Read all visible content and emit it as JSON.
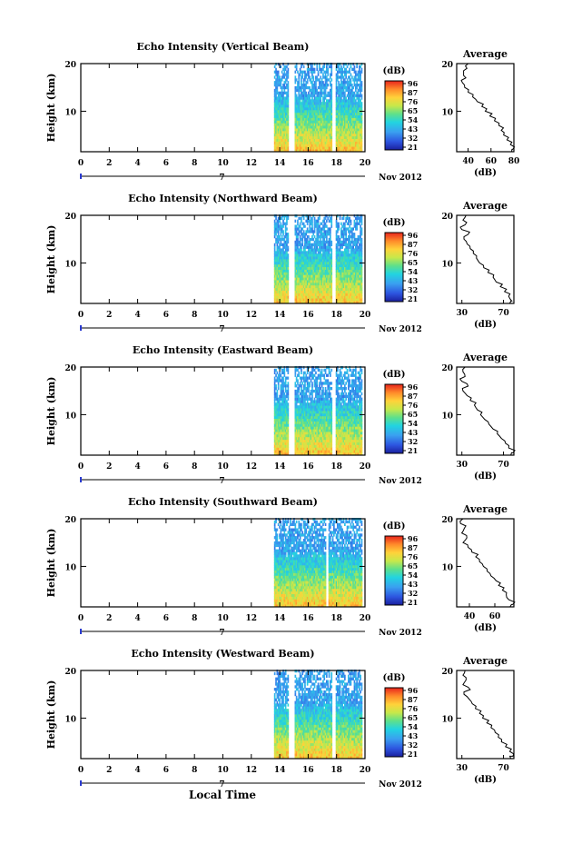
{
  "figure": {
    "xlabel": "Local Time",
    "date_label": "Nov 2012",
    "day_label": "7"
  },
  "chart_data": [
    {
      "type": "heatmap",
      "title": "Echo Intensity (Vertical Beam)",
      "xlabel": "",
      "ylabel": "Height (km)",
      "xlim": [
        0,
        20
      ],
      "ylim": [
        1.5,
        20
      ],
      "x_ticks": [
        "0",
        "2",
        "4",
        "6",
        "8",
        "10",
        "12",
        "14",
        "16",
        "18",
        "20"
      ],
      "y_ticks": [
        "10",
        "20"
      ],
      "data_start_hour": 13.6,
      "data_end_hour": 19.8,
      "gaps_hours": [
        [
          14.6,
          15.0
        ],
        [
          17.6,
          17.9
        ]
      ],
      "colorbar": {
        "label": "(dB)",
        "ticks": [
          "96",
          "87",
          "76",
          "65",
          "54",
          "43",
          "32",
          "21"
        ]
      },
      "average": {
        "title": "Average",
        "xlabel": "(dB)",
        "x_ticks": [
          "40",
          "60",
          "80"
        ],
        "y_ticks": [
          "10",
          "20"
        ],
        "xlim": [
          30,
          80
        ],
        "profile": [
          [
            78,
            1.5
          ],
          [
            79,
            2
          ],
          [
            77,
            3
          ],
          [
            74,
            4
          ],
          [
            71,
            5
          ],
          [
            69,
            6
          ],
          [
            67,
            7
          ],
          [
            63,
            8
          ],
          [
            59,
            9
          ],
          [
            55,
            10
          ],
          [
            52,
            11
          ],
          [
            48,
            12
          ],
          [
            44,
            13
          ],
          [
            40,
            14
          ],
          [
            37,
            15
          ],
          [
            35,
            16
          ],
          [
            38,
            17
          ],
          [
            36,
            18
          ],
          [
            39,
            19
          ],
          [
            40,
            20
          ]
        ]
      }
    },
    {
      "type": "heatmap",
      "title": "Echo Intensity (Northward Beam)",
      "xlabel": "",
      "ylabel": "Height (km)",
      "xlim": [
        0,
        20
      ],
      "ylim": [
        1.5,
        20
      ],
      "x_ticks": [
        "0",
        "2",
        "4",
        "6",
        "8",
        "10",
        "12",
        "14",
        "16",
        "18",
        "20"
      ],
      "y_ticks": [
        "10",
        "20"
      ],
      "data_start_hour": 13.6,
      "data_end_hour": 19.8,
      "gaps_hours": [
        [
          14.6,
          15.0
        ],
        [
          17.6,
          17.9
        ]
      ],
      "colorbar": {
        "label": "(dB)",
        "ticks": [
          "96",
          "87",
          "76",
          "65",
          "54",
          "43",
          "32",
          "21"
        ]
      },
      "average": {
        "title": "Average",
        "xlabel": "(dB)",
        "x_ticks": [
          "30",
          "70"
        ],
        "y_ticks": [
          "10",
          "20"
        ],
        "xlim": [
          25,
          80
        ],
        "profile": [
          [
            76,
            1.5
          ],
          [
            78,
            2
          ],
          [
            75,
            3
          ],
          [
            71,
            4
          ],
          [
            67,
            5
          ],
          [
            63,
            6
          ],
          [
            60,
            7
          ],
          [
            55,
            8
          ],
          [
            51,
            9
          ],
          [
            47,
            10
          ],
          [
            44,
            11
          ],
          [
            41,
            12
          ],
          [
            38,
            13
          ],
          [
            35,
            14
          ],
          [
            32,
            15
          ],
          [
            36,
            16
          ],
          [
            30,
            17
          ],
          [
            33,
            18
          ],
          [
            31,
            19
          ],
          [
            34,
            20
          ]
        ]
      }
    },
    {
      "type": "heatmap",
      "title": "Echo Intensity (Eastward Beam)",
      "xlabel": "",
      "ylabel": "Height (km)",
      "xlim": [
        0,
        20
      ],
      "ylim": [
        1.5,
        20
      ],
      "x_ticks": [
        "0",
        "2",
        "4",
        "6",
        "8",
        "10",
        "12",
        "14",
        "16",
        "18",
        "20"
      ],
      "y_ticks": [
        "10",
        "20"
      ],
      "data_start_hour": 13.6,
      "data_end_hour": 19.8,
      "gaps_hours": [
        [
          14.6,
          15.0
        ],
        [
          17.6,
          17.9
        ]
      ],
      "colorbar": {
        "label": "(dB)",
        "ticks": [
          "96",
          "87",
          "76",
          "65",
          "54",
          "43",
          "32",
          "21"
        ]
      },
      "average": {
        "title": "Average",
        "xlabel": "(dB)",
        "x_ticks": [
          "30",
          "70"
        ],
        "y_ticks": [
          "10",
          "20"
        ],
        "xlim": [
          25,
          80
        ],
        "profile": [
          [
            77,
            1.5
          ],
          [
            79,
            2
          ],
          [
            75,
            3
          ],
          [
            72,
            4
          ],
          [
            68,
            5
          ],
          [
            64,
            6
          ],
          [
            60,
            7
          ],
          [
            56,
            8
          ],
          [
            52,
            9
          ],
          [
            48,
            10
          ],
          [
            45,
            11
          ],
          [
            42,
            12
          ],
          [
            38,
            13
          ],
          [
            35,
            14
          ],
          [
            31,
            15
          ],
          [
            36,
            16
          ],
          [
            30,
            17
          ],
          [
            33,
            18
          ],
          [
            31,
            19
          ],
          [
            33,
            20
          ]
        ]
      }
    },
    {
      "type": "heatmap",
      "title": "Echo Intensity (Southward Beam)",
      "xlabel": "",
      "ylabel": "Height (km)",
      "xlim": [
        0,
        20
      ],
      "ylim": [
        1.5,
        20
      ],
      "x_ticks": [
        "0",
        "2",
        "4",
        "6",
        "8",
        "10",
        "12",
        "14",
        "16",
        "18",
        "20"
      ],
      "y_ticks": [
        "10",
        "20"
      ],
      "data_start_hour": 13.6,
      "data_end_hour": 19.8,
      "gaps_hours": [
        [
          17.2,
          17.4
        ]
      ],
      "colorbar": {
        "label": "(dB)",
        "ticks": [
          "96",
          "87",
          "76",
          "65",
          "54",
          "43",
          "32",
          "21"
        ]
      },
      "average": {
        "title": "Average",
        "xlabel": "(dB)",
        "x_ticks": [
          "40",
          "60"
        ],
        "y_ticks": [
          "10",
          "20"
        ],
        "xlim": [
          30,
          75
        ],
        "profile": [
          [
            72,
            1.5
          ],
          [
            74,
            2
          ],
          [
            71,
            3
          ],
          [
            69,
            4
          ],
          [
            66,
            5
          ],
          [
            63,
            6
          ],
          [
            61,
            7
          ],
          [
            57,
            8
          ],
          [
            54,
            9
          ],
          [
            51,
            10
          ],
          [
            48,
            11
          ],
          [
            45,
            12
          ],
          [
            42,
            13
          ],
          [
            39,
            14
          ],
          [
            35,
            15
          ],
          [
            38,
            16
          ],
          [
            34,
            17
          ],
          [
            36,
            18
          ],
          [
            33,
            19
          ],
          [
            35,
            20
          ]
        ]
      }
    },
    {
      "type": "heatmap",
      "title": "Echo Intensity (Westward Beam)",
      "xlabel": "",
      "ylabel": "Height (km)",
      "xlim": [
        0,
        20
      ],
      "ylim": [
        1.5,
        20
      ],
      "x_ticks": [
        "0",
        "2",
        "4",
        "6",
        "8",
        "10",
        "12",
        "14",
        "16",
        "18",
        "20"
      ],
      "y_ticks": [
        "10",
        "20"
      ],
      "data_start_hour": 13.6,
      "data_end_hour": 19.8,
      "gaps_hours": [
        [
          14.6,
          15.0
        ],
        [
          17.6,
          17.9
        ]
      ],
      "colorbar": {
        "label": "(dB)",
        "ticks": [
          "96",
          "87",
          "76",
          "65",
          "54",
          "43",
          "32",
          "21"
        ]
      },
      "average": {
        "title": "Average",
        "xlabel": "(dB)",
        "x_ticks": [
          "30",
          "70"
        ],
        "y_ticks": [
          "10",
          "20"
        ],
        "xlim": [
          25,
          80
        ],
        "profile": [
          [
            77,
            1.5
          ],
          [
            79,
            2
          ],
          [
            76,
            3
          ],
          [
            72,
            4
          ],
          [
            68,
            5
          ],
          [
            65,
            6
          ],
          [
            62,
            7
          ],
          [
            58,
            8
          ],
          [
            54,
            9
          ],
          [
            50,
            10
          ],
          [
            47,
            11
          ],
          [
            43,
            12
          ],
          [
            40,
            13
          ],
          [
            37,
            14
          ],
          [
            32,
            15
          ],
          [
            38,
            16
          ],
          [
            31,
            17
          ],
          [
            34,
            18
          ],
          [
            31,
            19
          ],
          [
            33,
            20
          ]
        ]
      }
    }
  ]
}
